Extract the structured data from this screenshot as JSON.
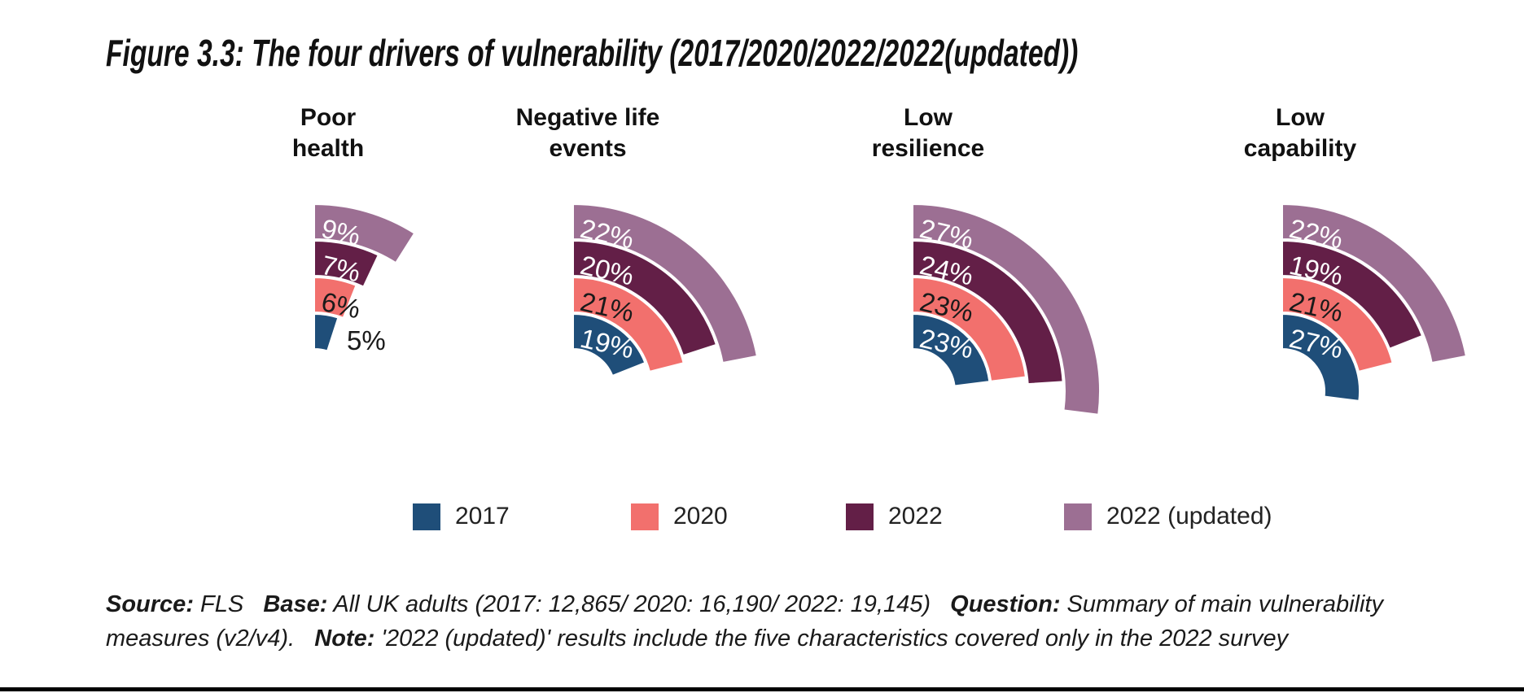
{
  "figure": {
    "title": "Figure 3.3: The four drivers of vulnerability (2017/2020/2022/2022(updated))"
  },
  "chart_data": {
    "type": "radial-bar",
    "unit": "%",
    "angle_per_percent_deg": 3.6,
    "start_angle": "12-o-clock, sweeping clockwise",
    "categories": [
      "Poor health",
      "Negative life events",
      "Low resilience",
      "Low capability"
    ],
    "group_title_lines": [
      [
        "Poor",
        "health"
      ],
      [
        "Negative life",
        "events"
      ],
      [
        "Low",
        "resilience"
      ],
      [
        "Low",
        "capability"
      ]
    ],
    "series": [
      {
        "name": "2017",
        "color": "#1F4E79",
        "label_color": "#FFFFFF",
        "values": [
          5,
          19,
          23,
          27
        ]
      },
      {
        "name": "2020",
        "color": "#F2706D",
        "label_color": "#1A1A1A",
        "values": [
          6,
          21,
          23,
          21
        ]
      },
      {
        "name": "2022",
        "color": "#631F47",
        "label_color": "#FFFFFF",
        "values": [
          7,
          20,
          24,
          19
        ]
      },
      {
        "name": "2022 (updated)",
        "color": "#9C6F93",
        "label_color": "#FFFFFF",
        "values": [
          9,
          22,
          27,
          22
        ]
      }
    ],
    "value_label_suffix": "%",
    "legend_position": "bottom",
    "grid": false
  },
  "legend": {
    "items": [
      {
        "label": "2017",
        "color": "#1F4E79"
      },
      {
        "label": "2020",
        "color": "#F2706D"
      },
      {
        "label": "2022",
        "color": "#631F47"
      },
      {
        "label": "2022 (updated)",
        "color": "#9C6F93"
      }
    ]
  },
  "footer": {
    "lines": [
      [
        {
          "t": "Source:",
          "b": 1
        },
        {
          "t": " FLS   ",
          "b": 0
        },
        {
          "t": "Base:",
          "b": 1
        },
        {
          "t": " All UK adults (2017: 12,865/ 2020: 16,190/ 2022: 19,145)   ",
          "b": 0
        },
        {
          "t": "Question:",
          "b": 1
        },
        {
          "t": " Summary of main vulnerability",
          "b": 0
        }
      ],
      [
        {
          "t": "measures (v2/v4).   ",
          "b": 0
        },
        {
          "t": "Note:",
          "b": 1
        },
        {
          "t": " '2022 (updated)' results include the five characteristics covered only in the 2022 survey",
          "b": 0
        }
      ]
    ]
  }
}
